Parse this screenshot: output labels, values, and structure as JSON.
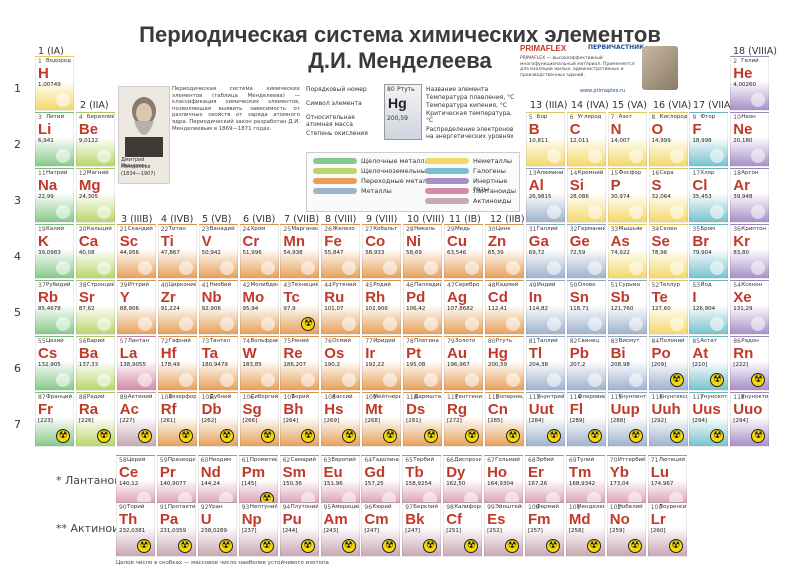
{
  "title_line1": "Периодическая система химических элементов",
  "title_line2": "Д.И. Менделеева",
  "groups": {
    "g1": "1 (IA)",
    "g2": "2 (IIA)",
    "g3": "3 (IIIB)",
    "g4": "4 (IVB)",
    "g5": "5 (VB)",
    "g6": "6 (VIB)",
    "g7": "7 (VIIB)",
    "g8": "8 (VIII)",
    "g9": "9 (VIII)",
    "g10": "10 (VIII)",
    "g11": "11 (IB)",
    "g12": "12 (IIB)",
    "g13": "13 (IIIA)",
    "g14": "14 (IVA)",
    "g15": "15 (VA)",
    "g16": "16 (VIA)",
    "g17": "17 (VIIA)",
    "g18": "18 (VIIIA)"
  },
  "periods": [
    "1",
    "2",
    "3",
    "4",
    "5",
    "6",
    "7"
  ],
  "portrait": {
    "caption1": "Дмитрий Иванович",
    "caption2": "Менделеев",
    "years": "(1834—1907)"
  },
  "intro_text": "Периодическая система химических элементов (таблица Менделеева) — классификация химических элементов, позволяющая выявить зависимость от различных свойств от заряда атомного ядра. Периодический закон разработан Д.И. Менделеевым в 1869—1871 годах.",
  "key": {
    "label_number": "Порядковый номер",
    "label_symbol": "Символ элемента",
    "label_mass": "Относительная атомная масса",
    "label_oxidation": "Степень окисления",
    "label_name": "Название элемента",
    "label_melt": "Температура плавления, °С",
    "label_boil": "Температура кипения, °С",
    "label_crit": "Критическая температура, °С",
    "label_electrons": "Распределение электронов на энергетических уровнях",
    "sample_num": "80",
    "sample_name": "Ртуть",
    "sample_sym": "Hg",
    "sample_mass": "200,59"
  },
  "categories": [
    {
      "name": "Щелочные металлы",
      "color": "#86c98a"
    },
    {
      "name": "Щелочноземельные металлы",
      "color": "#b9d76a"
    },
    {
      "name": "Переходные металлы",
      "color": "#e7a05a"
    },
    {
      "name": "Металлы",
      "color": "#9fb2cf"
    },
    {
      "name": "Неметаллы",
      "color": "#f4d86a"
    },
    {
      "name": "Галогены",
      "color": "#78c2cc"
    },
    {
      "name": "Инертные газы",
      "color": "#a88fc9"
    },
    {
      "name": "Лантаноиды",
      "color": "#d58aa8"
    },
    {
      "name": "Актиноиды",
      "color": "#c9a7b4"
    }
  ],
  "brand": {
    "logo1": "PRIMAFLEX",
    "logo2": "ПЕРВИЧАСТНИК",
    "blurb": "PRIMAFLEX — высокоэффективный многофункциональный материал. Применяется для изоляции жилых, административных и производственных зданий.",
    "url": "www.primaplex.ru"
  },
  "elements": [
    {
      "num": "1",
      "sym": "H",
      "name": "Водород",
      "mass": "1,00749",
      "g": 1,
      "p": 1,
      "cat": 4
    },
    {
      "num": "2",
      "sym": "He",
      "name": "Гелий",
      "mass": "4,00260",
      "g": 18,
      "p": 1,
      "cat": 6
    },
    {
      "num": "3",
      "sym": "Li",
      "name": "Литий",
      "mass": "6,941",
      "g": 1,
      "p": 2,
      "cat": 0
    },
    {
      "num": "4",
      "sym": "Be",
      "name": "Бериллий",
      "mass": "9,0122",
      "g": 2,
      "p": 2,
      "cat": 1
    },
    {
      "num": "5",
      "sym": "B",
      "name": "Бор",
      "mass": "10,811",
      "g": 13,
      "p": 2,
      "cat": 4
    },
    {
      "num": "6",
      "sym": "C",
      "name": "Углерод",
      "mass": "12,011",
      "g": 14,
      "p": 2,
      "cat": 4
    },
    {
      "num": "7",
      "sym": "N",
      "name": "Азот",
      "mass": "14,007",
      "g": 15,
      "p": 2,
      "cat": 4
    },
    {
      "num": "8",
      "sym": "O",
      "name": "Кислород",
      "mass": "14,999",
      "g": 16,
      "p": 2,
      "cat": 4
    },
    {
      "num": "9",
      "sym": "F",
      "name": "Фтор",
      "mass": "18,998",
      "g": 17,
      "p": 2,
      "cat": 5
    },
    {
      "num": "10",
      "sym": "Ne",
      "name": "Неон",
      "mass": "20,180",
      "g": 18,
      "p": 2,
      "cat": 6
    },
    {
      "num": "11",
      "sym": "Na",
      "name": "Натрий",
      "mass": "22,99",
      "g": 1,
      "p": 3,
      "cat": 0
    },
    {
      "num": "12",
      "sym": "Mg",
      "name": "Магний",
      "mass": "24,305",
      "g": 2,
      "p": 3,
      "cat": 1
    },
    {
      "num": "13",
      "sym": "Al",
      "name": "Алюминий",
      "mass": "26,9815",
      "g": 13,
      "p": 3,
      "cat": 3
    },
    {
      "num": "14",
      "sym": "Si",
      "name": "Кремний",
      "mass": "28,086",
      "g": 14,
      "p": 3,
      "cat": 4
    },
    {
      "num": "15",
      "sym": "P",
      "name": "Фосфор",
      "mass": "30,974",
      "g": 15,
      "p": 3,
      "cat": 4
    },
    {
      "num": "16",
      "sym": "S",
      "name": "Сера",
      "mass": "32,064",
      "g": 16,
      "p": 3,
      "cat": 4
    },
    {
      "num": "17",
      "sym": "Cl",
      "name": "Хлор",
      "mass": "35,453",
      "g": 17,
      "p": 3,
      "cat": 5
    },
    {
      "num": "18",
      "sym": "Ar",
      "name": "Аргон",
      "mass": "39,948",
      "g": 18,
      "p": 3,
      "cat": 6
    },
    {
      "num": "19",
      "sym": "K",
      "name": "Калий",
      "mass": "39,0983",
      "g": 1,
      "p": 4,
      "cat": 0
    },
    {
      "num": "20",
      "sym": "Ca",
      "name": "Кальций",
      "mass": "40,08",
      "g": 2,
      "p": 4,
      "cat": 1
    },
    {
      "num": "21",
      "sym": "Sc",
      "name": "Скандий",
      "mass": "44,956",
      "g": 3,
      "p": 4,
      "cat": 2
    },
    {
      "num": "22",
      "sym": "Ti",
      "name": "Титан",
      "mass": "47,867",
      "g": 4,
      "p": 4,
      "cat": 2
    },
    {
      "num": "23",
      "sym": "V",
      "name": "Ванадий",
      "mass": "50,942",
      "g": 5,
      "p": 4,
      "cat": 2
    },
    {
      "num": "24",
      "sym": "Cr",
      "name": "Хром",
      "mass": "51,996",
      "g": 6,
      "p": 4,
      "cat": 2
    },
    {
      "num": "25",
      "sym": "Mn",
      "name": "Марганец",
      "mass": "54,938",
      "g": 7,
      "p": 4,
      "cat": 2
    },
    {
      "num": "26",
      "sym": "Fe",
      "name": "Железо",
      "mass": "55,847",
      "g": 8,
      "p": 4,
      "cat": 2
    },
    {
      "num": "27",
      "sym": "Co",
      "name": "Кобальт",
      "mass": "58,933",
      "g": 9,
      "p": 4,
      "cat": 2
    },
    {
      "num": "28",
      "sym": "Ni",
      "name": "Никель",
      "mass": "58,69",
      "g": 10,
      "p": 4,
      "cat": 2
    },
    {
      "num": "29",
      "sym": "Cu",
      "name": "Медь",
      "mass": "63,546",
      "g": 11,
      "p": 4,
      "cat": 2
    },
    {
      "num": "30",
      "sym": "Zn",
      "name": "Цинк",
      "mass": "65,39",
      "g": 12,
      "p": 4,
      "cat": 2
    },
    {
      "num": "31",
      "sym": "Ga",
      "name": "Галлий",
      "mass": "69,72",
      "g": 13,
      "p": 4,
      "cat": 3
    },
    {
      "num": "32",
      "sym": "Ge",
      "name": "Германий",
      "mass": "72,59",
      "g": 14,
      "p": 4,
      "cat": 3
    },
    {
      "num": "33",
      "sym": "As",
      "name": "Мышьяк",
      "mass": "74,922",
      "g": 15,
      "p": 4,
      "cat": 4
    },
    {
      "num": "34",
      "sym": "Se",
      "name": "Селен",
      "mass": "78,96",
      "g": 16,
      "p": 4,
      "cat": 4
    },
    {
      "num": "35",
      "sym": "Br",
      "name": "Бром",
      "mass": "79,904",
      "g": 17,
      "p": 4,
      "cat": 5
    },
    {
      "num": "36",
      "sym": "Kr",
      "name": "Криптон",
      "mass": "83,80",
      "g": 18,
      "p": 4,
      "cat": 6
    },
    {
      "num": "37",
      "sym": "Rb",
      "name": "Рубидий",
      "mass": "85,4678",
      "g": 1,
      "p": 5,
      "cat": 0
    },
    {
      "num": "38",
      "sym": "Sr",
      "name": "Стронций",
      "mass": "87,62",
      "g": 2,
      "p": 5,
      "cat": 1
    },
    {
      "num": "39",
      "sym": "Y",
      "name": "Иттрий",
      "mass": "88,906",
      "g": 3,
      "p": 5,
      "cat": 2
    },
    {
      "num": "40",
      "sym": "Zr",
      "name": "Цирконий",
      "mass": "91,224",
      "g": 4,
      "p": 5,
      "cat": 2
    },
    {
      "num": "41",
      "sym": "Nb",
      "name": "Ниобий",
      "mass": "92,906",
      "g": 5,
      "p": 5,
      "cat": 2
    },
    {
      "num": "42",
      "sym": "Mo",
      "name": "Молибден",
      "mass": "95,94",
      "g": 6,
      "p": 5,
      "cat": 2
    },
    {
      "num": "43",
      "sym": "Tc",
      "name": "Технеций",
      "mass": "97,9",
      "g": 7,
      "p": 5,
      "cat": 2
    },
    {
      "num": "44",
      "sym": "Ru",
      "name": "Рутений",
      "mass": "101,07",
      "g": 8,
      "p": 5,
      "cat": 2
    },
    {
      "num": "45",
      "sym": "Rh",
      "name": "Родий",
      "mass": "102,906",
      "g": 9,
      "p": 5,
      "cat": 2
    },
    {
      "num": "46",
      "sym": "Pd",
      "name": "Палладий",
      "mass": "106,42",
      "g": 10,
      "p": 5,
      "cat": 2
    },
    {
      "num": "47",
      "sym": "Ag",
      "name": "Серебро",
      "mass": "107,8682",
      "g": 11,
      "p": 5,
      "cat": 2
    },
    {
      "num": "48",
      "sym": "Cd",
      "name": "Кадмий",
      "mass": "112,41",
      "g": 12,
      "p": 5,
      "cat": 2
    },
    {
      "num": "49",
      "sym": "In",
      "name": "Индий",
      "mass": "114,82",
      "g": 13,
      "p": 5,
      "cat": 3
    },
    {
      "num": "50",
      "sym": "Sn",
      "name": "Олово",
      "mass": "118,71",
      "g": 14,
      "p": 5,
      "cat": 3
    },
    {
      "num": "51",
      "sym": "Sb",
      "name": "Сурьма",
      "mass": "121,760",
      "g": 15,
      "p": 5,
      "cat": 3
    },
    {
      "num": "52",
      "sym": "Te",
      "name": "Теллур",
      "mass": "127,60",
      "g": 16,
      "p": 5,
      "cat": 4
    },
    {
      "num": "53",
      "sym": "I",
      "name": "Йод",
      "mass": "126,904",
      "g": 17,
      "p": 5,
      "cat": 5
    },
    {
      "num": "54",
      "sym": "Xe",
      "name": "Ксенон",
      "mass": "131,29",
      "g": 18,
      "p": 5,
      "cat": 6
    },
    {
      "num": "55",
      "sym": "Cs",
      "name": "Цезий",
      "mass": "132,905",
      "g": 1,
      "p": 6,
      "cat": 0
    },
    {
      "num": "56",
      "sym": "Ba",
      "name": "Барий",
      "mass": "137,33",
      "g": 2,
      "p": 6,
      "cat": 1
    },
    {
      "num": "57",
      "sym": "La",
      "name": "Лантан",
      "mass": "138,9055",
      "g": 3,
      "p": 6,
      "cat": 7
    },
    {
      "num": "72",
      "sym": "Hf",
      "name": "Гафний",
      "mass": "178,49",
      "g": 4,
      "p": 6,
      "cat": 2
    },
    {
      "num": "73",
      "sym": "Ta",
      "name": "Тантал",
      "mass": "180,9479",
      "g": 5,
      "p": 6,
      "cat": 2
    },
    {
      "num": "74",
      "sym": "W",
      "name": "Вольфрам",
      "mass": "183,85",
      "g": 6,
      "p": 6,
      "cat": 2
    },
    {
      "num": "75",
      "sym": "Re",
      "name": "Рений",
      "mass": "186,207",
      "g": 7,
      "p": 6,
      "cat": 2
    },
    {
      "num": "76",
      "sym": "Os",
      "name": "Осмий",
      "mass": "190,2",
      "g": 8,
      "p": 6,
      "cat": 2
    },
    {
      "num": "77",
      "sym": "Ir",
      "name": "Иридий",
      "mass": "192,22",
      "g": 9,
      "p": 6,
      "cat": 2
    },
    {
      "num": "78",
      "sym": "Pt",
      "name": "Платина",
      "mass": "195,08",
      "g": 10,
      "p": 6,
      "cat": 2
    },
    {
      "num": "79",
      "sym": "Au",
      "name": "Золото",
      "mass": "196,967",
      "g": 11,
      "p": 6,
      "cat": 2
    },
    {
      "num": "80",
      "sym": "Hg",
      "name": "Ртуть",
      "mass": "200,59",
      "g": 12,
      "p": 6,
      "cat": 2
    },
    {
      "num": "81",
      "sym": "Tl",
      "name": "Таллий",
      "mass": "204,38",
      "g": 13,
      "p": 6,
      "cat": 3
    },
    {
      "num": "82",
      "sym": "Pb",
      "name": "Свинец",
      "mass": "207,2",
      "g": 14,
      "p": 6,
      "cat": 3
    },
    {
      "num": "83",
      "sym": "Bi",
      "name": "Висмут",
      "mass": "208,98",
      "g": 15,
      "p": 6,
      "cat": 3
    },
    {
      "num": "84",
      "sym": "Po",
      "name": "Полоний",
      "mass": "[209]",
      "g": 16,
      "p": 6,
      "cat": 3
    },
    {
      "num": "85",
      "sym": "At",
      "name": "Астат",
      "mass": "[210]",
      "g": 17,
      "p": 6,
      "cat": 5
    },
    {
      "num": "86",
      "sym": "Rn",
      "name": "Радон",
      "mass": "[222]",
      "g": 18,
      "p": 6,
      "cat": 6
    },
    {
      "num": "87",
      "sym": "Fr",
      "name": "Франций",
      "mass": "[223]",
      "g": 1,
      "p": 7,
      "cat": 0
    },
    {
      "num": "88",
      "sym": "Ra",
      "name": "Радий",
      "mass": "[226]",
      "g": 2,
      "p": 7,
      "cat": 1
    },
    {
      "num": "89",
      "sym": "Ac",
      "name": "Актиний",
      "mass": "[227]",
      "g": 3,
      "p": 7,
      "cat": 8
    },
    {
      "num": "104",
      "sym": "Rf",
      "name": "Резерфордий",
      "mass": "[261]",
      "g": 4,
      "p": 7,
      "cat": 2
    },
    {
      "num": "105",
      "sym": "Db",
      "name": "Дубний",
      "mass": "[262]",
      "g": 5,
      "p": 7,
      "cat": 2
    },
    {
      "num": "106",
      "sym": "Sg",
      "name": "Сиборгий",
      "mass": "[266]",
      "g": 6,
      "p": 7,
      "cat": 2
    },
    {
      "num": "107",
      "sym": "Bh",
      "name": "Борий",
      "mass": "[264]",
      "g": 7,
      "p": 7,
      "cat": 2
    },
    {
      "num": "108",
      "sym": "Hs",
      "name": "Хассий",
      "mass": "[269]",
      "g": 8,
      "p": 7,
      "cat": 2
    },
    {
      "num": "109",
      "sym": "Mt",
      "name": "Мейтнерий",
      "mass": "[268]",
      "g": 9,
      "p": 7,
      "cat": 2
    },
    {
      "num": "110",
      "sym": "Ds",
      "name": "Дармштадтий",
      "mass": "[281]",
      "g": 10,
      "p": 7,
      "cat": 2
    },
    {
      "num": "111",
      "sym": "Rg",
      "name": "Рентгений",
      "mass": "[272]",
      "g": 11,
      "p": 7,
      "cat": 2
    },
    {
      "num": "112",
      "sym": "Cn",
      "name": "Коперниций",
      "mass": "[285]",
      "g": 12,
      "p": 7,
      "cat": 2
    },
    {
      "num": "113",
      "sym": "Uut",
      "name": "Унунтрий",
      "mass": "[284]",
      "g": 13,
      "p": 7,
      "cat": 3
    },
    {
      "num": "114",
      "sym": "Fl",
      "name": "Флеровий",
      "mass": "[289]",
      "g": 14,
      "p": 7,
      "cat": 3
    },
    {
      "num": "115",
      "sym": "Uup",
      "name": "Унунпентий",
      "mass": "[288]",
      "g": 15,
      "p": 7,
      "cat": 3
    },
    {
      "num": "116",
      "sym": "Uuh",
      "name": "Унунгексий",
      "mass": "[292]",
      "g": 16,
      "p": 7,
      "cat": 3
    },
    {
      "num": "117",
      "sym": "Uus",
      "name": "Унунсептий",
      "mass": "[294]",
      "g": 17,
      "p": 7,
      "cat": 5
    },
    {
      "num": "118",
      "sym": "Uuo",
      "name": "Унуноктий",
      "mass": "[294]",
      "g": 18,
      "p": 7,
      "cat": 6
    }
  ],
  "lanthanides_label": "* Лантаноиды",
  "actinides_label": "** Актиноиды",
  "lanthanides": [
    {
      "num": "58",
      "sym": "Ce",
      "name": "Церий",
      "mass": "140,12"
    },
    {
      "num": "59",
      "sym": "Pr",
      "name": "Празеодим",
      "mass": "140,9077"
    },
    {
      "num": "60",
      "sym": "Nd",
      "name": "Неодим",
      "mass": "144,24"
    },
    {
      "num": "61",
      "sym": "Pm",
      "name": "Прометий",
      "mass": "[145]"
    },
    {
      "num": "62",
      "sym": "Sm",
      "name": "Самарий",
      "mass": "150,36"
    },
    {
      "num": "63",
      "sym": "Eu",
      "name": "Европий",
      "mass": "151,96"
    },
    {
      "num": "64",
      "sym": "Gd",
      "name": "Гадолиний",
      "mass": "157,25"
    },
    {
      "num": "65",
      "sym": "Tb",
      "name": "Тербий",
      "mass": "158,9254"
    },
    {
      "num": "66",
      "sym": "Dy",
      "name": "Диспрозий",
      "mass": "162,50"
    },
    {
      "num": "67",
      "sym": "Ho",
      "name": "Гольмий",
      "mass": "164,9304"
    },
    {
      "num": "68",
      "sym": "Er",
      "name": "Эрбий",
      "mass": "167,26"
    },
    {
      "num": "69",
      "sym": "Tm",
      "name": "Тулий",
      "mass": "168,9342"
    },
    {
      "num": "70",
      "sym": "Yb",
      "name": "Иттербий",
      "mass": "173,04"
    },
    {
      "num": "71",
      "sym": "Lu",
      "name": "Лютеций",
      "mass": "174,967"
    }
  ],
  "actinides": [
    {
      "num": "90",
      "sym": "Th",
      "name": "Торий",
      "mass": "232,0381"
    },
    {
      "num": "91",
      "sym": "Pa",
      "name": "Протактиний",
      "mass": "231,0359"
    },
    {
      "num": "92",
      "sym": "U",
      "name": "Уран",
      "mass": "238,0289"
    },
    {
      "num": "93",
      "sym": "Np",
      "name": "Нептуний",
      "mass": "[237]"
    },
    {
      "num": "94",
      "sym": "Pu",
      "name": "Плутоний",
      "mass": "[244]"
    },
    {
      "num": "95",
      "sym": "Am",
      "name": "Америций",
      "mass": "[243]"
    },
    {
      "num": "96",
      "sym": "Cm",
      "name": "Кюрий",
      "mass": "[247]"
    },
    {
      "num": "97",
      "sym": "Bk",
      "name": "Берклий",
      "mass": "[247]"
    },
    {
      "num": "98",
      "sym": "Cf",
      "name": "Калифорний",
      "mass": "[251]"
    },
    {
      "num": "99",
      "sym": "Es",
      "name": "Эйнштейний",
      "mass": "[252]"
    },
    {
      "num": "100",
      "sym": "Fm",
      "name": "Фермий",
      "mass": "[257]"
    },
    {
      "num": "101",
      "sym": "Md",
      "name": "Менделевий",
      "mass": "[258]"
    },
    {
      "num": "102",
      "sym": "No",
      "name": "Нобелий",
      "mass": "[259]"
    },
    {
      "num": "103",
      "sym": "Lr",
      "name": "Лоуренсий",
      "mass": "[260]"
    }
  ],
  "footnote": "Целое число в скобках — массовое число наиболее устойчивого изотопа",
  "radioactive_icon": "radiation-icon"
}
